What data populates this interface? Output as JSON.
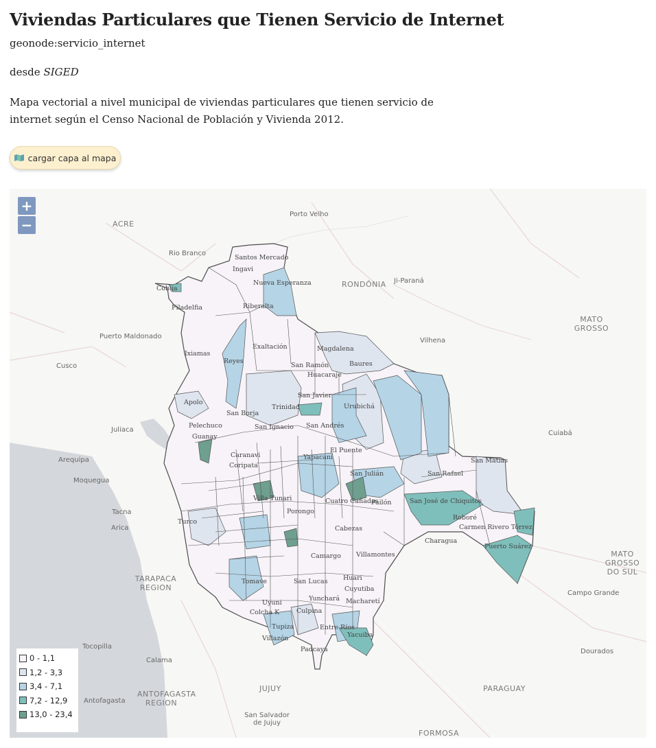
{
  "header": {
    "title": "Viviendas Particulares que Tienen Servicio de Internet",
    "layer_id": "geonode:servicio_internet",
    "source_prefix": "desde ",
    "source_name": "SIGED",
    "description": "Mapa vectorial a nivel municipal de viviendas particulares que tienen servicio de internet según el Censo Nacional de Población y Vivienda 2012."
  },
  "actions": {
    "load_layer_label": "cargar capa al mapa",
    "load_layer_icon": "map-icon"
  },
  "map": {
    "zoom_in": "+",
    "zoom_out": "−",
    "legend": [
      {
        "label": "0 - 1,1",
        "color": "#f7f3f8"
      },
      {
        "label": "1,2 - 3,3",
        "color": "#dfe5ef"
      },
      {
        "label": "3,4 - 7,1",
        "color": "#b5d4e6"
      },
      {
        "label": "7,2 - 12,9",
        "color": "#7fbfbb"
      },
      {
        "label": "13,0 - 23,4",
        "color": "#6f9f8e"
      }
    ],
    "basemap_labels": [
      "Porto Velho",
      "ACRE",
      "Rio Branco",
      "RONDÔNIA",
      "Ji-Paraná",
      "MATO GROSSO",
      "Puerto Maldonado",
      "Vilhena",
      "Cusco",
      "Juliaca",
      "Cuiabá",
      "Arequipa",
      "Moquegua",
      "Tacna",
      "Arica",
      "TARAPACA REGION",
      "MATO GROSSO DO SUL",
      "Campo Grande",
      "Tocopilla",
      "Calama",
      "Dourados",
      "ANTOFAGASTA REGION",
      "Antofagasta",
      "JUJUY",
      "PARAGUAY",
      "San Salvador de Jujuy",
      "FORMOSA"
    ],
    "municipality_labels": [
      "Santos Mercado",
      "Ingavi",
      "Nueva Esperanza",
      "Cobija",
      "Filadelfia",
      "Riberalta",
      "Exaltación",
      "Magdalena",
      "Ixiamas",
      "Reyes",
      "San Ramón",
      "Huacaraje",
      "Baures",
      "Apolo",
      "San Javier",
      "Trinidad",
      "San Borja",
      "Urubichá",
      "San Ignacio",
      "San Andrés",
      "Pelechuco",
      "Guanay",
      "Caranavi",
      "El Puente",
      "Yapacaní",
      "Coripata",
      "San Julián",
      "San Rafael",
      "San Matías",
      "Villa Tunari",
      "Cuatro Cañadas",
      "Pailón",
      "San José de Chiquitos",
      "Charagua",
      "Roboré",
      "Carmen Rivero Tórrez",
      "Puerto Suárez",
      "Cabezas",
      "Porongo",
      "Turco",
      "Camargo",
      "Villamontes",
      "Tomave",
      "San Lucas",
      "Villazón",
      "Colcha K",
      "Uyuni",
      "Tupiza",
      "Padcaya",
      "Yacuiba",
      "Macharetí",
      "Cuyutiba",
      "Entre Ríos",
      "Culpina",
      "Yunchará",
      "Huari"
    ]
  }
}
